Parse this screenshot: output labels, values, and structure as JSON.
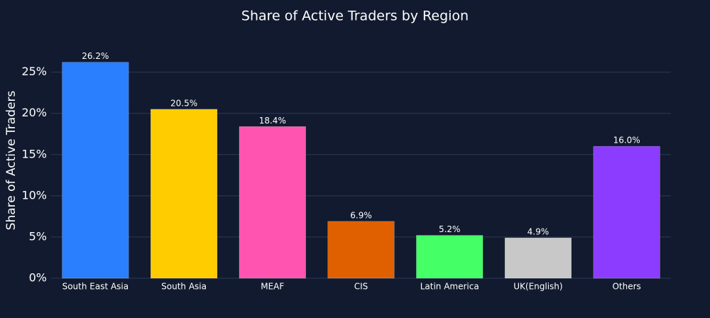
{
  "chart_data": {
    "type": "bar",
    "title": "Share of Active Traders by Region",
    "y_label": "Share of Active Traders",
    "categories": [
      "South East Asia",
      "South Asia",
      "MEAF",
      "CIS",
      "Latin America",
      "UK(English)",
      "Others"
    ],
    "values": [
      26.2,
      20.5,
      18.4,
      6.9,
      5.2,
      4.9,
      16.0
    ],
    "value_labels": [
      "26.2%",
      "20.5%",
      "18.4%",
      "6.9%",
      "5.2%",
      "4.9%",
      "16.0%"
    ],
    "colors": [
      "#2a7fff",
      "#ffcc00",
      "#ff55b0",
      "#e06000",
      "#44ff66",
      "#c8c8c8",
      "#8c3cff"
    ],
    "ylim": [
      0,
      28.5
    ],
    "yticks": [
      {
        "value": 0,
        "label": "0%"
      },
      {
        "value": 5,
        "label": "5%"
      },
      {
        "value": 10,
        "label": "10%"
      },
      {
        "value": 15,
        "label": "15%"
      },
      {
        "value": 20,
        "label": "20%"
      },
      {
        "value": 25,
        "label": "25%"
      }
    ],
    "grid": true
  }
}
